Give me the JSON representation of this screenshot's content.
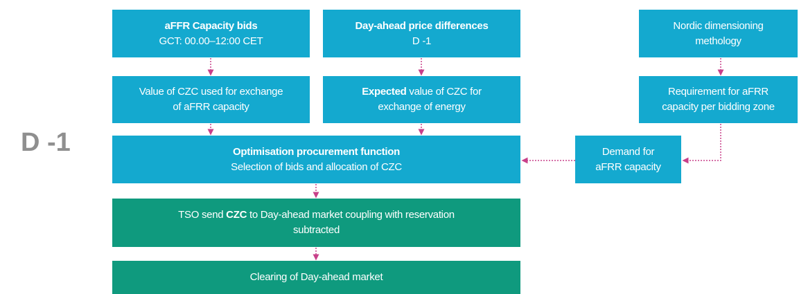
{
  "side_label": "D -1",
  "nodes": [
    {
      "color": "#14a9cf",
      "lines": [
        [
          {
            "text": "aFFR Capacity bids",
            "bold": true
          }
        ],
        [
          {
            "text": "GCT: 00.00–12:00 CET",
            "bold": false
          }
        ]
      ]
    },
    {
      "color": "#14a9cf",
      "lines": [
        [
          {
            "text": "Day-ahead price differences",
            "bold": true
          }
        ],
        [
          {
            "text": "D -1",
            "bold": false
          }
        ]
      ]
    },
    {
      "color": "#14a9cf",
      "lines": [
        [
          {
            "text": "Nordic dimensioning",
            "bold": false
          }
        ],
        [
          {
            "text": "methology",
            "bold": false
          }
        ]
      ]
    },
    {
      "color": "#14a9cf",
      "lines": [
        [
          {
            "text": "Value of CZC used for exchange",
            "bold": false
          }
        ],
        [
          {
            "text": "of aFRR capacity",
            "bold": false
          }
        ]
      ]
    },
    {
      "color": "#14a9cf",
      "lines": [
        [
          {
            "text": "Expected",
            "bold": true
          },
          {
            "text": " value of CZC for",
            "bold": false
          }
        ],
        [
          {
            "text": "exchange of energy",
            "bold": false
          }
        ]
      ]
    },
    {
      "color": "#14a9cf",
      "lines": [
        [
          {
            "text": "Requirement for aFRR",
            "bold": false
          }
        ],
        [
          {
            "text": "capacity per bidding zone",
            "bold": false
          }
        ]
      ]
    },
    {
      "color": "#14a9cf",
      "lines": [
        [
          {
            "text": "Optimisation procurement function",
            "bold": true
          }
        ],
        [
          {
            "text": "Selection of bids and allocation of CZC",
            "bold": false
          }
        ]
      ]
    },
    {
      "color": "#14a9cf",
      "lines": [
        [
          {
            "text": "Demand for",
            "bold": false
          }
        ],
        [
          {
            "text": "aFRR capacity",
            "bold": false
          }
        ]
      ]
    },
    {
      "color": "#0f9a7e",
      "lines": [
        [
          {
            "text": "TSO send ",
            "bold": false
          },
          {
            "text": "CZC",
            "bold": true
          },
          {
            "text": " to Day-ahead market coupling with reservation",
            "bold": false
          }
        ],
        [
          {
            "text": "subtracted",
            "bold": false
          }
        ]
      ]
    },
    {
      "color": "#0f9a7e",
      "lines": [
        [
          {
            "text": "Clearing of Day-ahead market",
            "bold": false
          }
        ]
      ]
    }
  ]
}
